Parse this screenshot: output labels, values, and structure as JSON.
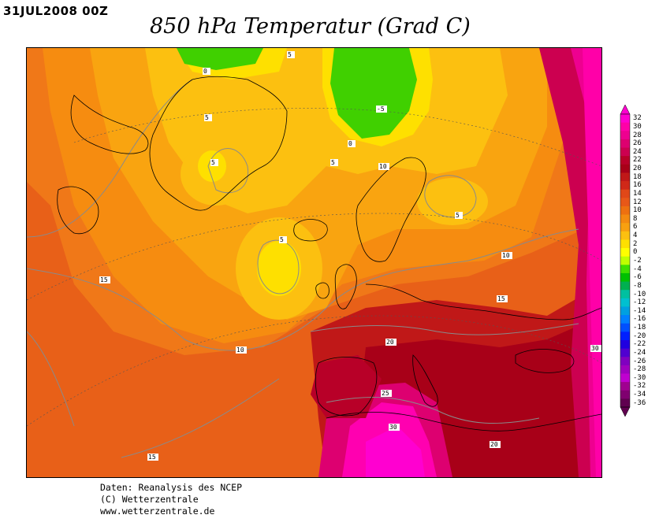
{
  "header": {
    "date": "31JUL2008 00Z",
    "title": "850 hPa Temperatur (Grad C)"
  },
  "map": {
    "region": "Europe / North Atlantic",
    "contour_labels": [
      "0",
      "5",
      "5",
      "-5",
      "0",
      "5",
      "5",
      "10",
      "5",
      "5",
      "10",
      "15",
      "15",
      "10",
      "20",
      "25",
      "30",
      "20",
      "15",
      "30"
    ]
  },
  "colorbar": {
    "labels": [
      "32",
      "30",
      "28",
      "26",
      "24",
      "22",
      "20",
      "18",
      "16",
      "14",
      "12",
      "10",
      "8",
      "6",
      "4",
      "2",
      "0",
      "-2",
      "-4",
      "-6",
      "-8",
      "-10",
      "-12",
      "-14",
      "-16",
      "-18",
      "-20",
      "-22",
      "-24",
      "-26",
      "-28",
      "-30",
      "-32",
      "-34",
      "-36"
    ],
    "colors": [
      "#ff00d0",
      "#ff00a8",
      "#ee0090",
      "#dd0070",
      "#cc0050",
      "#b80028",
      "#a80018",
      "#c01818",
      "#d02818",
      "#e04818",
      "#e85818",
      "#ee7010",
      "#f48a10",
      "#f8a010",
      "#fcc010",
      "#fee000",
      "#ffff00",
      "#c0ff00",
      "#40e000",
      "#00c000",
      "#00b050",
      "#00c0a0",
      "#00c0d0",
      "#00a0e0",
      "#0080ff",
      "#0050ff",
      "#0020ff",
      "#2000e0",
      "#5000d0",
      "#8000c0",
      "#a000c0",
      "#c000d0",
      "#a00090",
      "#800070",
      "#600050"
    ]
  },
  "credits": {
    "line1": "Daten: Reanalysis des NCEP",
    "line2": "(C) Wetterzentrale",
    "line3": "www.wetterzentrale.de"
  }
}
